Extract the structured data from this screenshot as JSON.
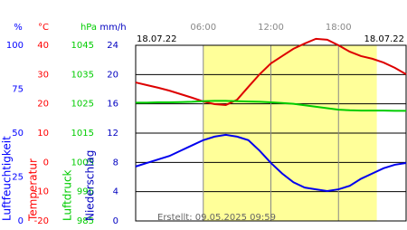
{
  "chart_data": {
    "type": "line",
    "date_left": "18.07.22",
    "date_right": "18.07.22",
    "footer": "Erstellt: 09.05.2025 09:59",
    "x": [
      0,
      1,
      2,
      3,
      4,
      5,
      6,
      7,
      8,
      9,
      10,
      11,
      12,
      13,
      14,
      15,
      16,
      17,
      18,
      19,
      20,
      21,
      22,
      23,
      24
    ],
    "xlim": [
      0,
      24
    ],
    "xticks": [
      {
        "value": 6,
        "label": "06:00"
      },
      {
        "value": 12,
        "label": "12:00"
      },
      {
        "value": 18,
        "label": "18:00"
      }
    ],
    "daylight": [
      6,
      21.4
    ],
    "daylight_color": "#ffff99",
    "axes": [
      {
        "unit": "%",
        "title": "Luftfeuchtigkeit",
        "color": "#0000ff",
        "ylim": [
          0,
          100
        ],
        "ticks": [
          0,
          25,
          50,
          75,
          100
        ]
      },
      {
        "unit": "°C",
        "title": "Temperatur",
        "color": "#ff0000",
        "ylim": [
          -20,
          40
        ],
        "ticks": [
          -20,
          -10,
          0,
          10,
          20,
          30,
          40
        ],
        "grid": true
      },
      {
        "unit": "hPa",
        "title": "Luftdruck",
        "color": "#00cc00",
        "ylim": [
          985,
          1045
        ],
        "ticks": [
          985,
          995,
          1005,
          1015,
          1025,
          1035,
          1045
        ]
      },
      {
        "unit": "mm/h",
        "title": "Niederschlag",
        "color": "#0000c0",
        "ylim": [
          0,
          24
        ],
        "ticks": [
          0,
          4,
          8,
          12,
          16,
          20,
          24
        ]
      }
    ],
    "series": [
      {
        "name": "Temperatur",
        "axis": 1,
        "color": "#dd0000",
        "values": [
          27.3,
          26.4,
          25.5,
          24.5,
          23.3,
          22.1,
          20.8,
          19.9,
          19.6,
          21.4,
          25.8,
          30.1,
          33.8,
          36.3,
          38.8,
          40.6,
          42.2,
          41.9,
          40,
          37.8,
          36.3,
          35.4,
          34.1,
          32.3,
          30.1
        ]
      },
      {
        "name": "Luftdruck",
        "axis": 2,
        "color": "#00cc00",
        "values": [
          1025.4,
          1025.4,
          1025.5,
          1025.5,
          1025.6,
          1025.7,
          1025.9,
          1026.0,
          1026.0,
          1025.9,
          1025.8,
          1025.7,
          1025.5,
          1025.3,
          1025.0,
          1024.5,
          1024.0,
          1023.5,
          1023.0,
          1022.8,
          1022.7,
          1022.7,
          1022.7,
          1022.6,
          1022.6
        ]
      },
      {
        "name": "Luftfeuchtigkeit",
        "axis": 0,
        "color": "#0000ee",
        "values": [
          31,
          33,
          35,
          37,
          40,
          43,
          46,
          48,
          49,
          48,
          46,
          40,
          33,
          27,
          22,
          19,
          18,
          17,
          18,
          20,
          24,
          27,
          30,
          32,
          33
        ]
      }
    ]
  }
}
